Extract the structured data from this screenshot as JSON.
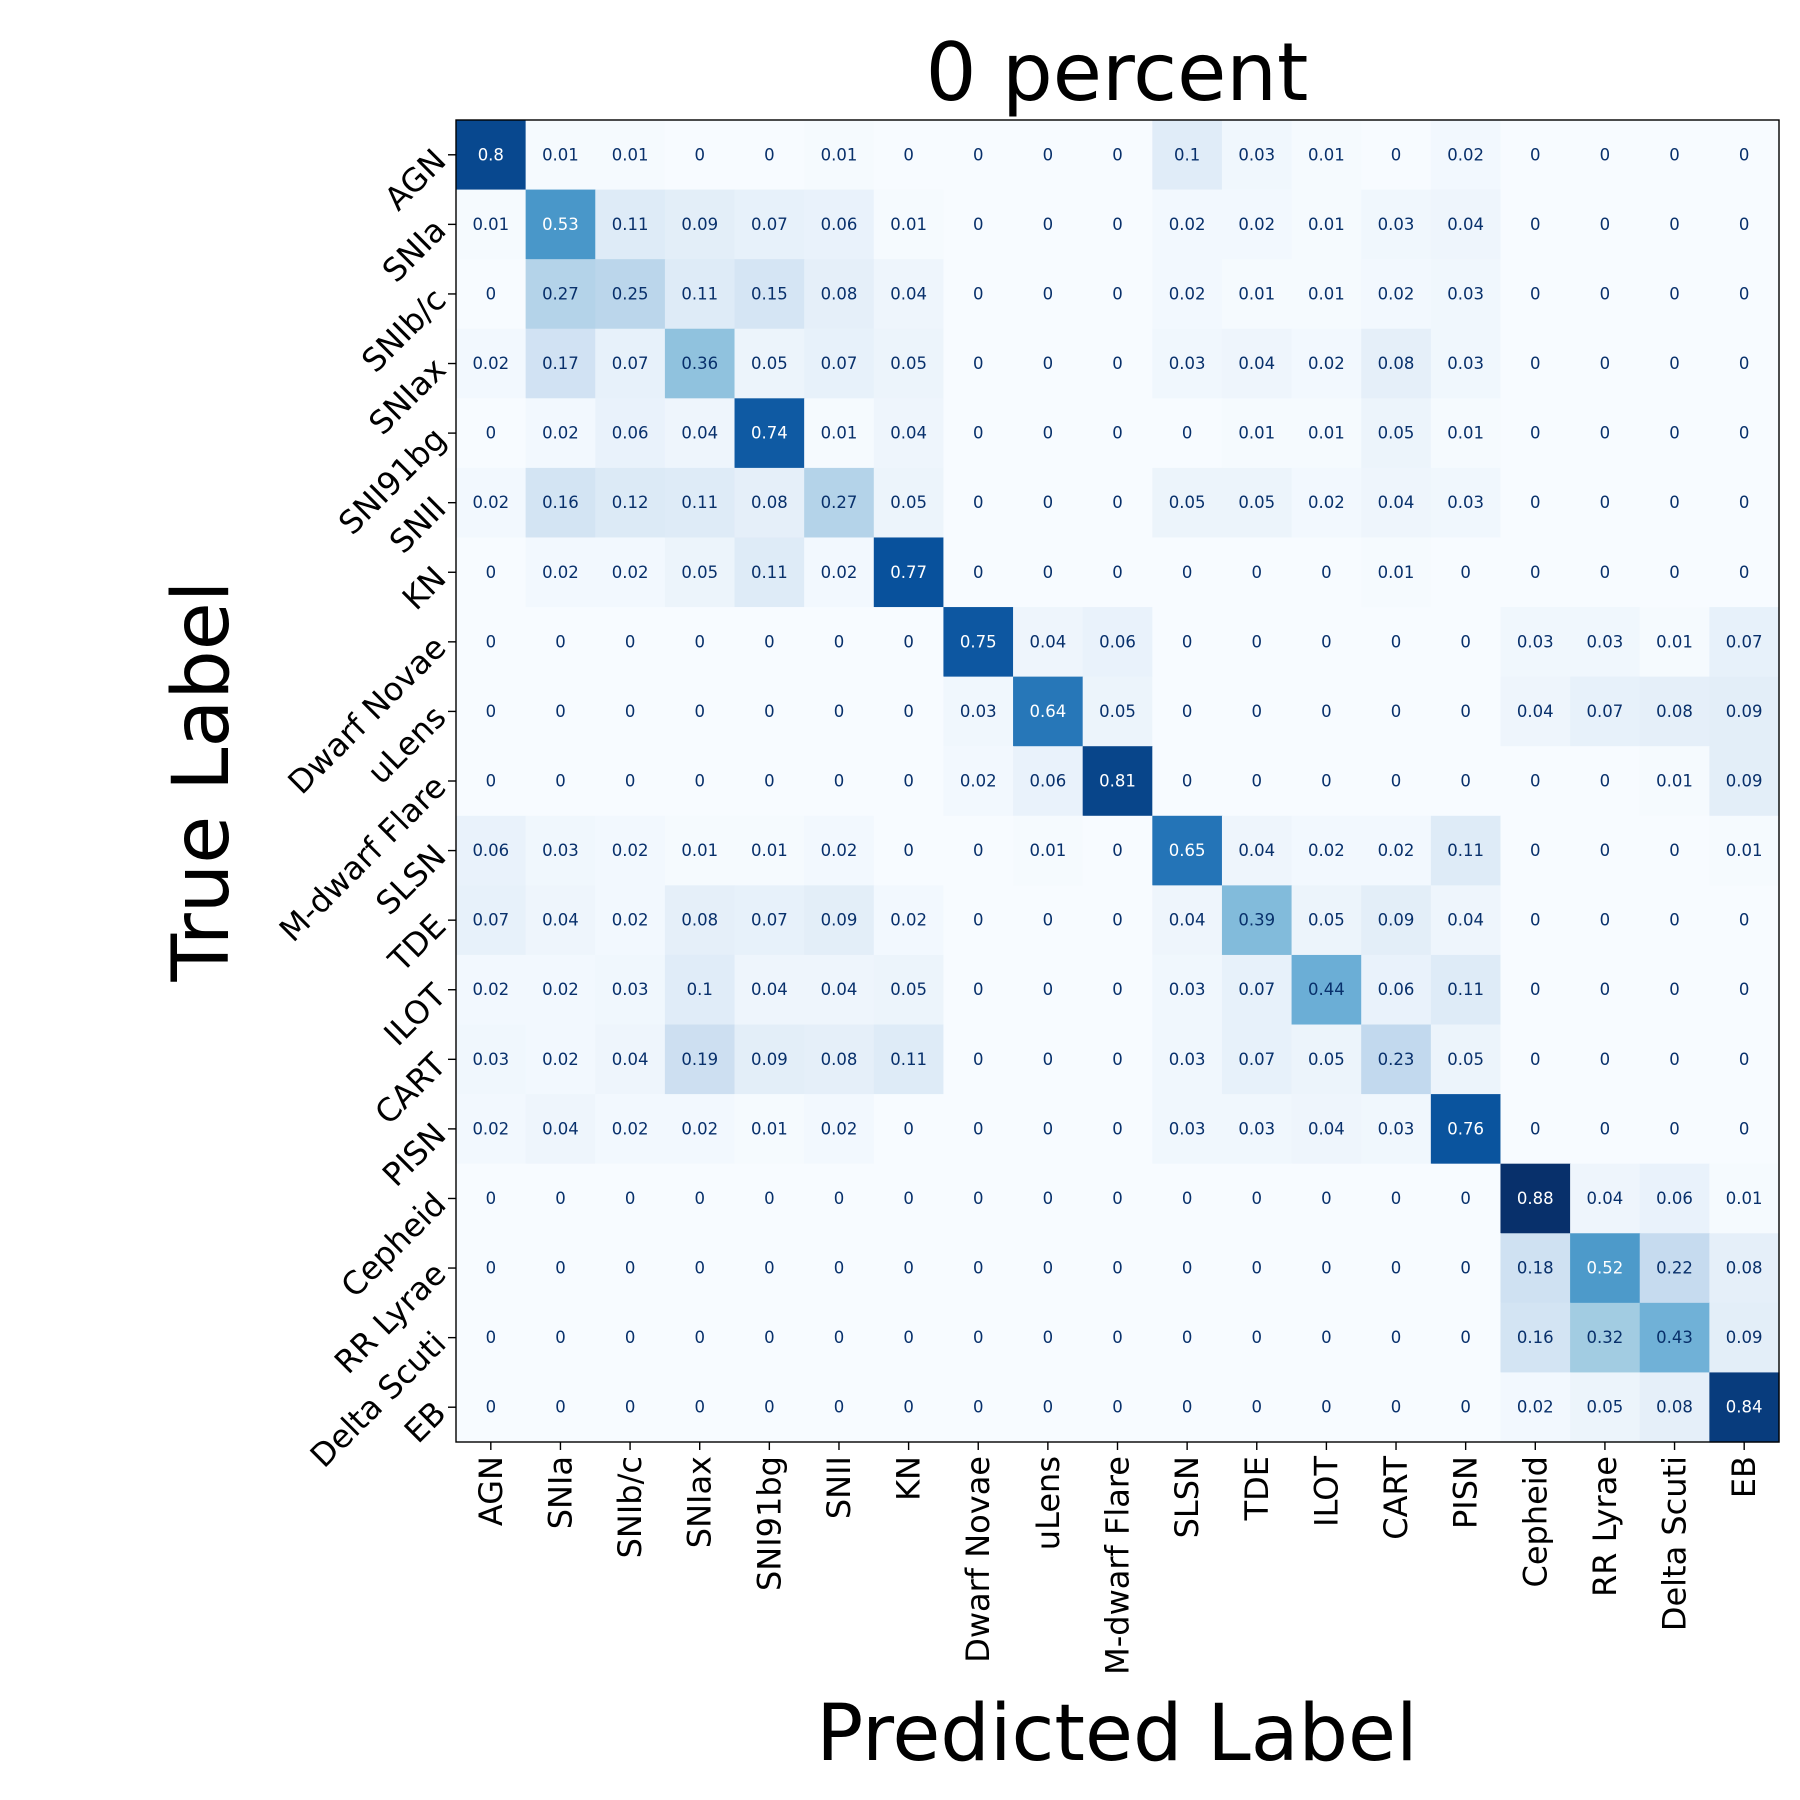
{
  "chart_data": {
    "type": "heatmap",
    "title": "0 percent",
    "xlabel": "Predicted Label",
    "ylabel": "True Label",
    "colormap": "Blues",
    "vrange": [
      0,
      0.88
    ],
    "labels": [
      "AGN",
      "SNIa",
      "SNIb/c",
      "SNIax",
      "SNI91bg",
      "SNII",
      "KN",
      "Dwarf Novae",
      "uLens",
      "M-dwarf Flare",
      "SLSN",
      "TDE",
      "ILOT",
      "CART",
      "PISN",
      "Cepheid",
      "RR Lyrae",
      "Delta Scuti",
      "EB"
    ],
    "matrix": [
      [
        0.8,
        0.01,
        0.01,
        0,
        0,
        0.01,
        0,
        0,
        0,
        0,
        0.1,
        0.03,
        0.01,
        0,
        0.02,
        0,
        0,
        0,
        0
      ],
      [
        0.01,
        0.53,
        0.11,
        0.09,
        0.07,
        0.06,
        0.01,
        0,
        0,
        0,
        0.02,
        0.02,
        0.01,
        0.03,
        0.04,
        0,
        0,
        0,
        0
      ],
      [
        0,
        0.27,
        0.25,
        0.11,
        0.15,
        0.08,
        0.04,
        0,
        0,
        0,
        0.02,
        0.01,
        0.01,
        0.02,
        0.03,
        0,
        0,
        0,
        0
      ],
      [
        0.02,
        0.17,
        0.07,
        0.36,
        0.05,
        0.07,
        0.05,
        0,
        0,
        0,
        0.03,
        0.04,
        0.02,
        0.08,
        0.03,
        0,
        0,
        0,
        0
      ],
      [
        0,
        0.02,
        0.06,
        0.04,
        0.74,
        0.01,
        0.04,
        0,
        0,
        0,
        0,
        0.01,
        0.01,
        0.05,
        0.01,
        0,
        0,
        0,
        0
      ],
      [
        0.02,
        0.16,
        0.12,
        0.11,
        0.08,
        0.27,
        0.05,
        0,
        0,
        0,
        0.05,
        0.05,
        0.02,
        0.04,
        0.03,
        0,
        0,
        0,
        0
      ],
      [
        0,
        0.02,
        0.02,
        0.05,
        0.11,
        0.02,
        0.77,
        0,
        0,
        0,
        0,
        0,
        0,
        0.01,
        0,
        0,
        0,
        0,
        0
      ],
      [
        0,
        0,
        0,
        0,
        0,
        0,
        0,
        0.75,
        0.04,
        0.06,
        0,
        0,
        0,
        0,
        0,
        0.03,
        0.03,
        0.01,
        0.07
      ],
      [
        0,
        0,
        0,
        0,
        0,
        0,
        0,
        0.03,
        0.64,
        0.05,
        0,
        0,
        0,
        0,
        0,
        0.04,
        0.07,
        0.08,
        0.09
      ],
      [
        0,
        0,
        0,
        0,
        0,
        0,
        0,
        0.02,
        0.06,
        0.81,
        0,
        0,
        0,
        0,
        0,
        0,
        0,
        0.01,
        0.09
      ],
      [
        0.06,
        0.03,
        0.02,
        0.01,
        0.01,
        0.02,
        0,
        0,
        0.01,
        0,
        0.65,
        0.04,
        0.02,
        0.02,
        0.11,
        0,
        0,
        0,
        0.01
      ],
      [
        0.07,
        0.04,
        0.02,
        0.08,
        0.07,
        0.09,
        0.02,
        0,
        0,
        0,
        0.04,
        0.39,
        0.05,
        0.09,
        0.04,
        0,
        0,
        0,
        0
      ],
      [
        0.02,
        0.02,
        0.03,
        0.1,
        0.04,
        0.04,
        0.05,
        0,
        0,
        0,
        0.03,
        0.07,
        0.44,
        0.06,
        0.11,
        0,
        0,
        0,
        0
      ],
      [
        0.03,
        0.02,
        0.04,
        0.19,
        0.09,
        0.08,
        0.11,
        0,
        0,
        0,
        0.03,
        0.07,
        0.05,
        0.23,
        0.05,
        0,
        0,
        0,
        0
      ],
      [
        0.02,
        0.04,
        0.02,
        0.02,
        0.01,
        0.02,
        0,
        0,
        0,
        0,
        0.03,
        0.03,
        0.04,
        0.03,
        0.76,
        0,
        0,
        0,
        0
      ],
      [
        0,
        0,
        0,
        0,
        0,
        0,
        0,
        0,
        0,
        0,
        0,
        0,
        0,
        0,
        0,
        0.88,
        0.04,
        0.06,
        0.01
      ],
      [
        0,
        0,
        0,
        0,
        0,
        0,
        0,
        0,
        0,
        0,
        0,
        0,
        0,
        0,
        0,
        0.18,
        0.52,
        0.22,
        0.08
      ],
      [
        0,
        0,
        0,
        0,
        0,
        0,
        0,
        0,
        0,
        0,
        0,
        0,
        0,
        0,
        0,
        0.16,
        0.32,
        0.43,
        0.09
      ],
      [
        0,
        0,
        0,
        0,
        0,
        0,
        0,
        0,
        0,
        0,
        0,
        0,
        0,
        0,
        0,
        0.02,
        0.05,
        0.08,
        0.84
      ]
    ]
  }
}
